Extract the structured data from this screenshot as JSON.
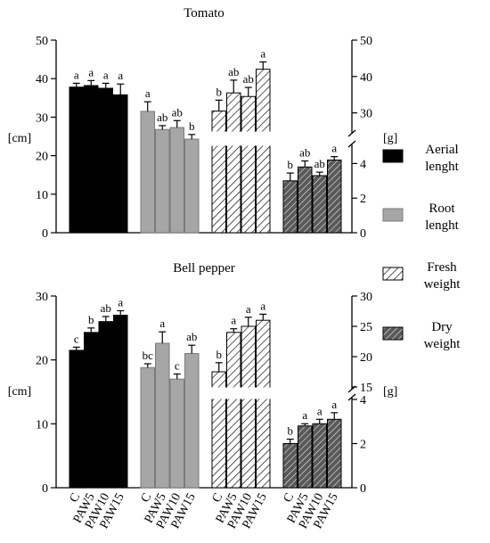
{
  "chart_data": [
    {
      "type": "bar",
      "title": "Tomato",
      "categories": [
        "C",
        "PAW5",
        "PAW10",
        "PAW15"
      ],
      "left_axis": {
        "label": "[cm]",
        "ylim": [
          0,
          50
        ],
        "ticks": [
          0,
          10,
          20,
          30,
          40,
          50
        ]
      },
      "right_axis": {
        "label": "[g]",
        "upper_segment": {
          "ylim": [
            25,
            50
          ],
          "ticks": [
            30,
            40,
            50
          ]
        },
        "lower_segment": {
          "ylim": [
            0,
            5
          ],
          "ticks": [
            0,
            2,
            4
          ]
        }
      },
      "series": [
        {
          "name": "Aerial lenght",
          "axis": "left",
          "values": [
            37.8,
            38.2,
            37.5,
            35.8
          ],
          "errors": [
            1.0,
            1.3,
            1.3,
            2.8
          ],
          "letters": [
            "a",
            "a",
            "a",
            "a"
          ]
        },
        {
          "name": "Root lenght",
          "axis": "left",
          "values": [
            31.5,
            26.8,
            27.3,
            24.3
          ],
          "errors": [
            2.5,
            1.0,
            1.8,
            1.2
          ],
          "letters": [
            "a",
            "ab",
            "ab",
            "b"
          ]
        },
        {
          "name": "Fresh weight",
          "axis": "right",
          "values": [
            30.5,
            35.5,
            34.5,
            42.0
          ],
          "errors": [
            3.0,
            3.5,
            2.5,
            2.0
          ],
          "letters": [
            "b",
            "ab",
            "ab",
            "a"
          ]
        },
        {
          "name": "Dry weight",
          "axis": "right",
          "values": [
            3.0,
            3.8,
            3.3,
            4.2
          ],
          "errors": [
            0.45,
            0.35,
            0.2,
            0.2
          ],
          "letters": [
            "b",
            "ab",
            "ab",
            "a"
          ]
        }
      ]
    },
    {
      "type": "bar",
      "title": "Bell pepper",
      "categories": [
        "C",
        "PAW5",
        "PAW10",
        "PAW15"
      ],
      "left_axis": {
        "label": "[cm]",
        "ylim": [
          0,
          30
        ],
        "ticks": [
          0,
          10,
          20,
          30
        ]
      },
      "right_axis": {
        "label": "[g]",
        "upper_segment": {
          "ylim": [
            15,
            30
          ],
          "ticks": [
            15,
            20,
            25,
            30
          ]
        },
        "lower_segment": {
          "ylim": [
            0,
            4
          ],
          "ticks": [
            0,
            2,
            4
          ]
        }
      },
      "series": [
        {
          "name": "Aerial lenght",
          "axis": "left",
          "values": [
            21.5,
            24.3,
            26.0,
            27.0
          ],
          "errors": [
            0.5,
            0.7,
            0.8,
            0.7
          ],
          "letters": [
            "c",
            "b",
            "ab",
            "a"
          ]
        },
        {
          "name": "Root lenght",
          "axis": "left",
          "values": [
            18.8,
            22.6,
            17.0,
            21.0
          ],
          "errors": [
            0.6,
            1.8,
            0.8,
            1.3
          ],
          "letters": [
            "bc",
            "a",
            "c",
            "ab"
          ]
        },
        {
          "name": "Fresh weight",
          "axis": "right",
          "values": [
            17.5,
            24.0,
            25.0,
            26.0
          ],
          "errors": [
            1.5,
            0.6,
            1.5,
            1.0
          ],
          "letters": [
            "b",
            "a",
            "a",
            "a"
          ]
        },
        {
          "name": "Dry weight",
          "axis": "right",
          "values": [
            2.0,
            2.8,
            2.9,
            3.1
          ],
          "errors": [
            0.2,
            0.1,
            0.2,
            0.3
          ],
          "letters": [
            "b",
            "a",
            "a",
            "a"
          ]
        }
      ]
    }
  ],
  "legend": [
    {
      "key": "aerial",
      "lines": [
        "Aerial",
        "lenght"
      ]
    },
    {
      "key": "root",
      "lines": [
        "Root",
        "lenght"
      ]
    },
    {
      "key": "fresh",
      "lines": [
        "Fresh",
        "weight"
      ]
    },
    {
      "key": "dry",
      "lines": [
        "Dry",
        "weight"
      ]
    }
  ],
  "colors": {
    "aerial": "#000000",
    "root": "#a6a6a6",
    "fresh_hatch": "#000000",
    "dry_fill": "#5a5a5a",
    "axis": "#000000"
  }
}
